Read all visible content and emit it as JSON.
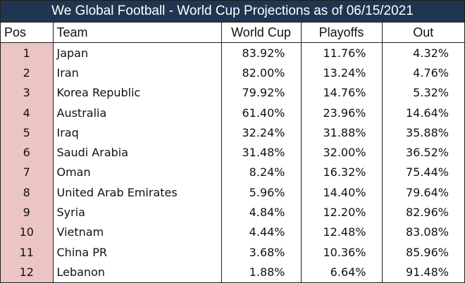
{
  "title": "We Global Football - World Cup Projections as of 06/15/2021",
  "colors": {
    "title_bg": "#1f3550",
    "pos_bg": "#ebc4c4"
  },
  "columns": [
    "Pos",
    "Team",
    "World Cup",
    "Playoffs",
    "Out"
  ],
  "rows": [
    [
      "1",
      "Japan",
      "83.92%",
      "11.76%",
      "4.32%"
    ],
    [
      "2",
      "Iran",
      "82.00%",
      "13.24%",
      "4.76%"
    ],
    [
      "3",
      "Korea Republic",
      "79.92%",
      "14.76%",
      "5.32%"
    ],
    [
      "4",
      "Australia",
      "61.40%",
      "23.96%",
      "14.64%"
    ],
    [
      "5",
      "Iraq",
      "32.24%",
      "31.88%",
      "35.88%"
    ],
    [
      "6",
      "Saudi Arabia",
      "31.48%",
      "32.00%",
      "36.52%"
    ],
    [
      "7",
      "Oman",
      "8.24%",
      "16.32%",
      "75.44%"
    ],
    [
      "8",
      "United Arab Emirates",
      "5.96%",
      "14.40%",
      "79.64%"
    ],
    [
      "9",
      "Syria",
      "4.84%",
      "12.20%",
      "82.96%"
    ],
    [
      "10",
      "Vietnam",
      "4.44%",
      "12.48%",
      "83.08%"
    ],
    [
      "11",
      "China PR",
      "3.68%",
      "10.36%",
      "85.96%"
    ],
    [
      "12",
      "Lebanon",
      "1.88%",
      "6.64%",
      "91.48%"
    ]
  ]
}
